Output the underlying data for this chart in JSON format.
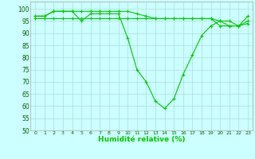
{
  "xlabel": "Humidité relative (%)",
  "x": [
    0,
    1,
    2,
    3,
    4,
    5,
    6,
    7,
    8,
    9,
    10,
    11,
    12,
    13,
    14,
    15,
    16,
    17,
    18,
    19,
    20,
    21,
    22,
    23
  ],
  "line1": [
    97,
    97,
    99,
    99,
    99,
    95,
    98,
    98,
    98,
    98,
    88,
    75,
    70,
    62,
    59,
    63,
    73,
    81,
    89,
    93,
    95,
    93,
    93,
    95
  ],
  "line2": [
    97,
    97,
    99,
    99,
    99,
    99,
    99,
    99,
    99,
    99,
    99,
    98,
    97,
    96,
    96,
    96,
    96,
    96,
    96,
    96,
    95,
    95,
    93,
    97
  ],
  "line3": [
    96,
    96,
    96,
    96,
    96,
    96,
    96,
    96,
    96,
    96,
    96,
    96,
    96,
    96,
    96,
    96,
    96,
    96,
    96,
    96,
    93,
    93,
    93,
    94
  ],
  "line_color": "#00cc00",
  "bg_color": "#ccffff",
  "grid_color": "#aadddd",
  "ylim": [
    50,
    103
  ],
  "yticks": [
    50,
    55,
    60,
    65,
    70,
    75,
    80,
    85,
    90,
    95,
    100
  ],
  "xtick_labels": [
    "0",
    "1",
    "2",
    "3",
    "4",
    "5",
    "6",
    "7",
    "8",
    "9",
    "10",
    "11",
    "12",
    "13",
    "14",
    "15",
    "16",
    "17",
    "18",
    "19",
    "20",
    "21",
    "22",
    "23"
  ]
}
